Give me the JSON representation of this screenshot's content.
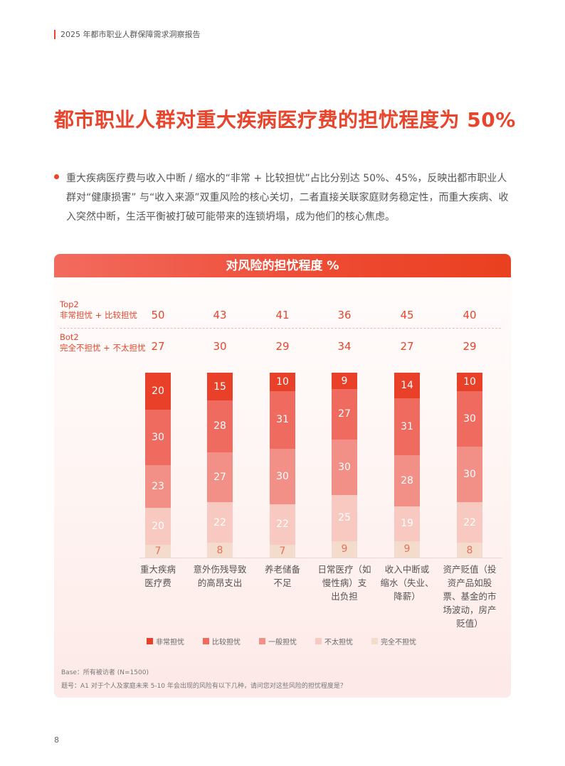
{
  "header": {
    "report_title": "2025 年都市职业人群保障需求洞察报告"
  },
  "page_title": "都市职业人群对重大疾病医疗费的担忧程度为 50%",
  "bullet_text": "重大疾病医疗费与收入中断 / 缩水的“非常 + 比较担忧”占比分别达 50%、45%，反映出都市职业人群对“健康损害” 与“收入来源”双重风险的核心关切，二者直接关联家庭财务稳定性，而重大疾病、收入突然中断，生活平衡被打破可能带来的连锁坍塌，成为他们的核心焦虑。",
  "card": {
    "title": "对风险的担忧程度 %",
    "top2_label_line1": "Top2",
    "top2_label_line2": "非常担忧 + 比较担忧",
    "bot2_label_line1": "Bot2",
    "bot2_label_line2": "完全不担忧 + 不太担忧",
    "top2_values": [
      "50",
      "43",
      "41",
      "36",
      "45",
      "40"
    ],
    "bot2_values": [
      "27",
      "30",
      "29",
      "34",
      "27",
      "29"
    ],
    "base_note": "Base：所有被访者 (N=1500)",
    "question_note": "题号：A1 对于个人及家庭未来 5-10 年会出现的风险有以下几种，请问您对这些风险的担忧程度是？"
  },
  "colors": {
    "accent": "#e8452c",
    "very_worried": "#e9402a",
    "fairly_worried": "#ef6a5f",
    "somewhat_worried": "#f29088",
    "not_very_worried": "#f8c9c1",
    "not_worried_at_all": "#f3dccb"
  },
  "chart_data": {
    "type": "bar",
    "stacked": true,
    "title": "对风险的担忧程度 %",
    "categories": [
      "重大疾病医疗费",
      "意外伤残导致的高昂支出",
      "养老储备不足",
      "日常医疗（如慢性病）支出负担",
      "收入中断或缩水（失业、降薪）",
      "资产贬值（投资产品如股票、基金的市场波动，房产贬值）"
    ],
    "series": [
      {
        "name": "非常担忧",
        "values": [
          20,
          15,
          10,
          9,
          14,
          10
        ]
      },
      {
        "name": "比较担忧",
        "values": [
          30,
          28,
          31,
          27,
          31,
          30
        ]
      },
      {
        "name": "一般担忧",
        "values": [
          23,
          27,
          30,
          30,
          28,
          30
        ]
      },
      {
        "name": "不太担忧",
        "values": [
          20,
          22,
          22,
          25,
          19,
          22
        ]
      },
      {
        "name": "完全不担忧",
        "values": [
          7,
          8,
          7,
          9,
          9,
          8
        ]
      }
    ],
    "summary_rows": [
      {
        "name": "Top2 非常担忧 + 比较担忧",
        "values": [
          50,
          43,
          41,
          36,
          45,
          40
        ]
      },
      {
        "name": "Bot2 完全不担忧 + 不太担忧",
        "values": [
          27,
          30,
          29,
          34,
          27,
          29
        ]
      }
    ],
    "xlabel": "",
    "ylabel": "%",
    "ylim": [
      0,
      100
    ],
    "grid": false,
    "legend_position": "bottom"
  },
  "categories_display": [
    "重大疾病\n医疗费",
    "意外伤残导致\n的高昂支出",
    "养老储备\n不足",
    "日常医疗（如\n慢性病）支\n出负担",
    "收入中断或\n缩水（失业、\n降薪）",
    "资产贬值（投\n资产品如股\n票、基金的市\n场波动，房产\n贬值）"
  ],
  "legend": [
    "非常担忧",
    "比较担忧",
    "一般担忧",
    "不太担忧",
    "完全不担忧"
  ],
  "page_number": "8"
}
